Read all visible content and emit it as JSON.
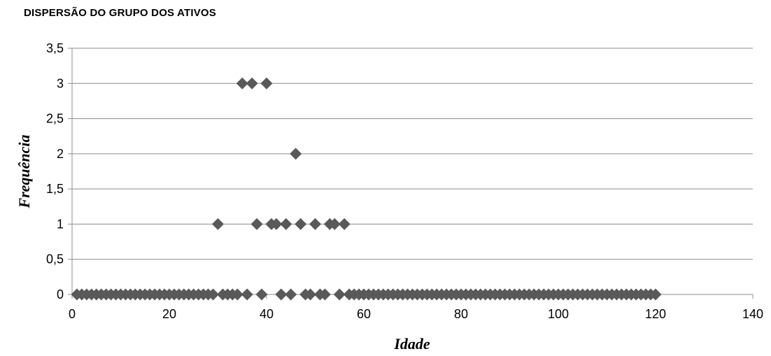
{
  "chart_data": {
    "type": "scatter",
    "title": "DISPERSÃO DO GRUPO DOS ATIVOS",
    "xlabel": "Idade",
    "ylabel": "Frequência",
    "xlim": [
      0,
      140
    ],
    "ylim": [
      0,
      3.5
    ],
    "xticks": [
      0,
      20,
      40,
      60,
      80,
      100,
      120,
      140
    ],
    "yticks": [
      0,
      0.5,
      1,
      1.5,
      2,
      2.5,
      3,
      3.5
    ],
    "xtick_labels": [
      "0",
      "20",
      "40",
      "60",
      "80",
      "100",
      "120",
      "140"
    ],
    "ytick_labels": [
      "0",
      "0,5",
      "1",
      "1,5",
      "2",
      "2,5",
      "3",
      "3,5"
    ],
    "grid": "horizontal",
    "marker": "diamond",
    "marker_color": "#595959",
    "points": [
      [
        1,
        0
      ],
      [
        2,
        0
      ],
      [
        3,
        0
      ],
      [
        4,
        0
      ],
      [
        5,
        0
      ],
      [
        6,
        0
      ],
      [
        7,
        0
      ],
      [
        8,
        0
      ],
      [
        9,
        0
      ],
      [
        10,
        0
      ],
      [
        11,
        0
      ],
      [
        12,
        0
      ],
      [
        13,
        0
      ],
      [
        14,
        0
      ],
      [
        15,
        0
      ],
      [
        16,
        0
      ],
      [
        17,
        0
      ],
      [
        18,
        0
      ],
      [
        19,
        0
      ],
      [
        20,
        0
      ],
      [
        21,
        0
      ],
      [
        22,
        0
      ],
      [
        23,
        0
      ],
      [
        24,
        0
      ],
      [
        25,
        0
      ],
      [
        26,
        0
      ],
      [
        27,
        0
      ],
      [
        28,
        0
      ],
      [
        29,
        0
      ],
      [
        30,
        1
      ],
      [
        31,
        0
      ],
      [
        32,
        0
      ],
      [
        33,
        0
      ],
      [
        34,
        0
      ],
      [
        35,
        3
      ],
      [
        36,
        0
      ],
      [
        37,
        3
      ],
      [
        38,
        1
      ],
      [
        39,
        0
      ],
      [
        40,
        3
      ],
      [
        41,
        1
      ],
      [
        42,
        1
      ],
      [
        43,
        0
      ],
      [
        44,
        1
      ],
      [
        45,
        0
      ],
      [
        46,
        2
      ],
      [
        47,
        1
      ],
      [
        48,
        0
      ],
      [
        49,
        0
      ],
      [
        50,
        1
      ],
      [
        51,
        0
      ],
      [
        52,
        0
      ],
      [
        53,
        1
      ],
      [
        54,
        1
      ],
      [
        55,
        0
      ],
      [
        56,
        1
      ],
      [
        57,
        0
      ],
      [
        58,
        0
      ],
      [
        59,
        0
      ],
      [
        60,
        0
      ],
      [
        61,
        0
      ],
      [
        62,
        0
      ],
      [
        63,
        0
      ],
      [
        64,
        0
      ],
      [
        65,
        0
      ],
      [
        66,
        0
      ],
      [
        67,
        0
      ],
      [
        68,
        0
      ],
      [
        69,
        0
      ],
      [
        70,
        0
      ],
      [
        71,
        0
      ],
      [
        72,
        0
      ],
      [
        73,
        0
      ],
      [
        74,
        0
      ],
      [
        75,
        0
      ],
      [
        76,
        0
      ],
      [
        77,
        0
      ],
      [
        78,
        0
      ],
      [
        79,
        0
      ],
      [
        80,
        0
      ],
      [
        81,
        0
      ],
      [
        82,
        0
      ],
      [
        83,
        0
      ],
      [
        84,
        0
      ],
      [
        85,
        0
      ],
      [
        86,
        0
      ],
      [
        87,
        0
      ],
      [
        88,
        0
      ],
      [
        89,
        0
      ],
      [
        90,
        0
      ],
      [
        91,
        0
      ],
      [
        92,
        0
      ],
      [
        93,
        0
      ],
      [
        94,
        0
      ],
      [
        95,
        0
      ],
      [
        96,
        0
      ],
      [
        97,
        0
      ],
      [
        98,
        0
      ],
      [
        99,
        0
      ],
      [
        100,
        0
      ],
      [
        101,
        0
      ],
      [
        102,
        0
      ],
      [
        103,
        0
      ],
      [
        104,
        0
      ],
      [
        105,
        0
      ],
      [
        106,
        0
      ],
      [
        107,
        0
      ],
      [
        108,
        0
      ],
      [
        109,
        0
      ],
      [
        110,
        0
      ],
      [
        111,
        0
      ],
      [
        112,
        0
      ],
      [
        113,
        0
      ],
      [
        114,
        0
      ],
      [
        115,
        0
      ],
      [
        116,
        0
      ],
      [
        117,
        0
      ],
      [
        118,
        0
      ],
      [
        119,
        0
      ],
      [
        120,
        0
      ]
    ]
  }
}
